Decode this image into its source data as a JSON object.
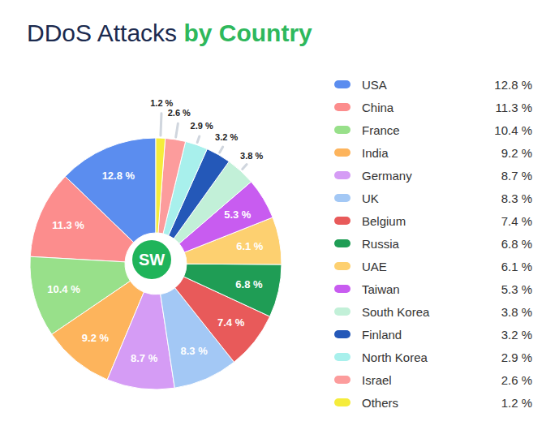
{
  "chart_data": {
    "type": "pie",
    "title": "DDoS Attacks by Country",
    "categories": [
      "USA",
      "China",
      "France",
      "India",
      "Germany",
      "UK",
      "Belgium",
      "Russia",
      "UAE",
      "Taiwan",
      "South Korea",
      "Finland",
      "North Korea",
      "Israel",
      "Others"
    ],
    "values": [
      12.8,
      11.3,
      10.4,
      9.2,
      8.7,
      8.3,
      7.4,
      6.8,
      6.1,
      5.3,
      3.8,
      3.2,
      2.9,
      2.6,
      1.2
    ],
    "value_labels": [
      "12.8 %",
      "11.3 %",
      "10.4 %",
      "9.2 %",
      "8.7 %",
      "8.3 %",
      "7.4 %",
      "6.8 %",
      "6.1 %",
      "5.3 %",
      "3.8 %",
      "3.2 %",
      "2.9 %",
      "2.6 %",
      "1.2 %"
    ],
    "colors": [
      "#5b8def",
      "#fc8d8d",
      "#98e08a",
      "#fdb45c",
      "#d59cf5",
      "#a3c8f5",
      "#e85a5a",
      "#1f9d55",
      "#fdd070",
      "#c85cf0",
      "#c2f0d8",
      "#2458b8",
      "#a8f0ec",
      "#fc9c9c",
      "#f5ec3b"
    ],
    "data_labels": true,
    "legend": "right",
    "annotations": [
      "SW"
    ]
  }
}
